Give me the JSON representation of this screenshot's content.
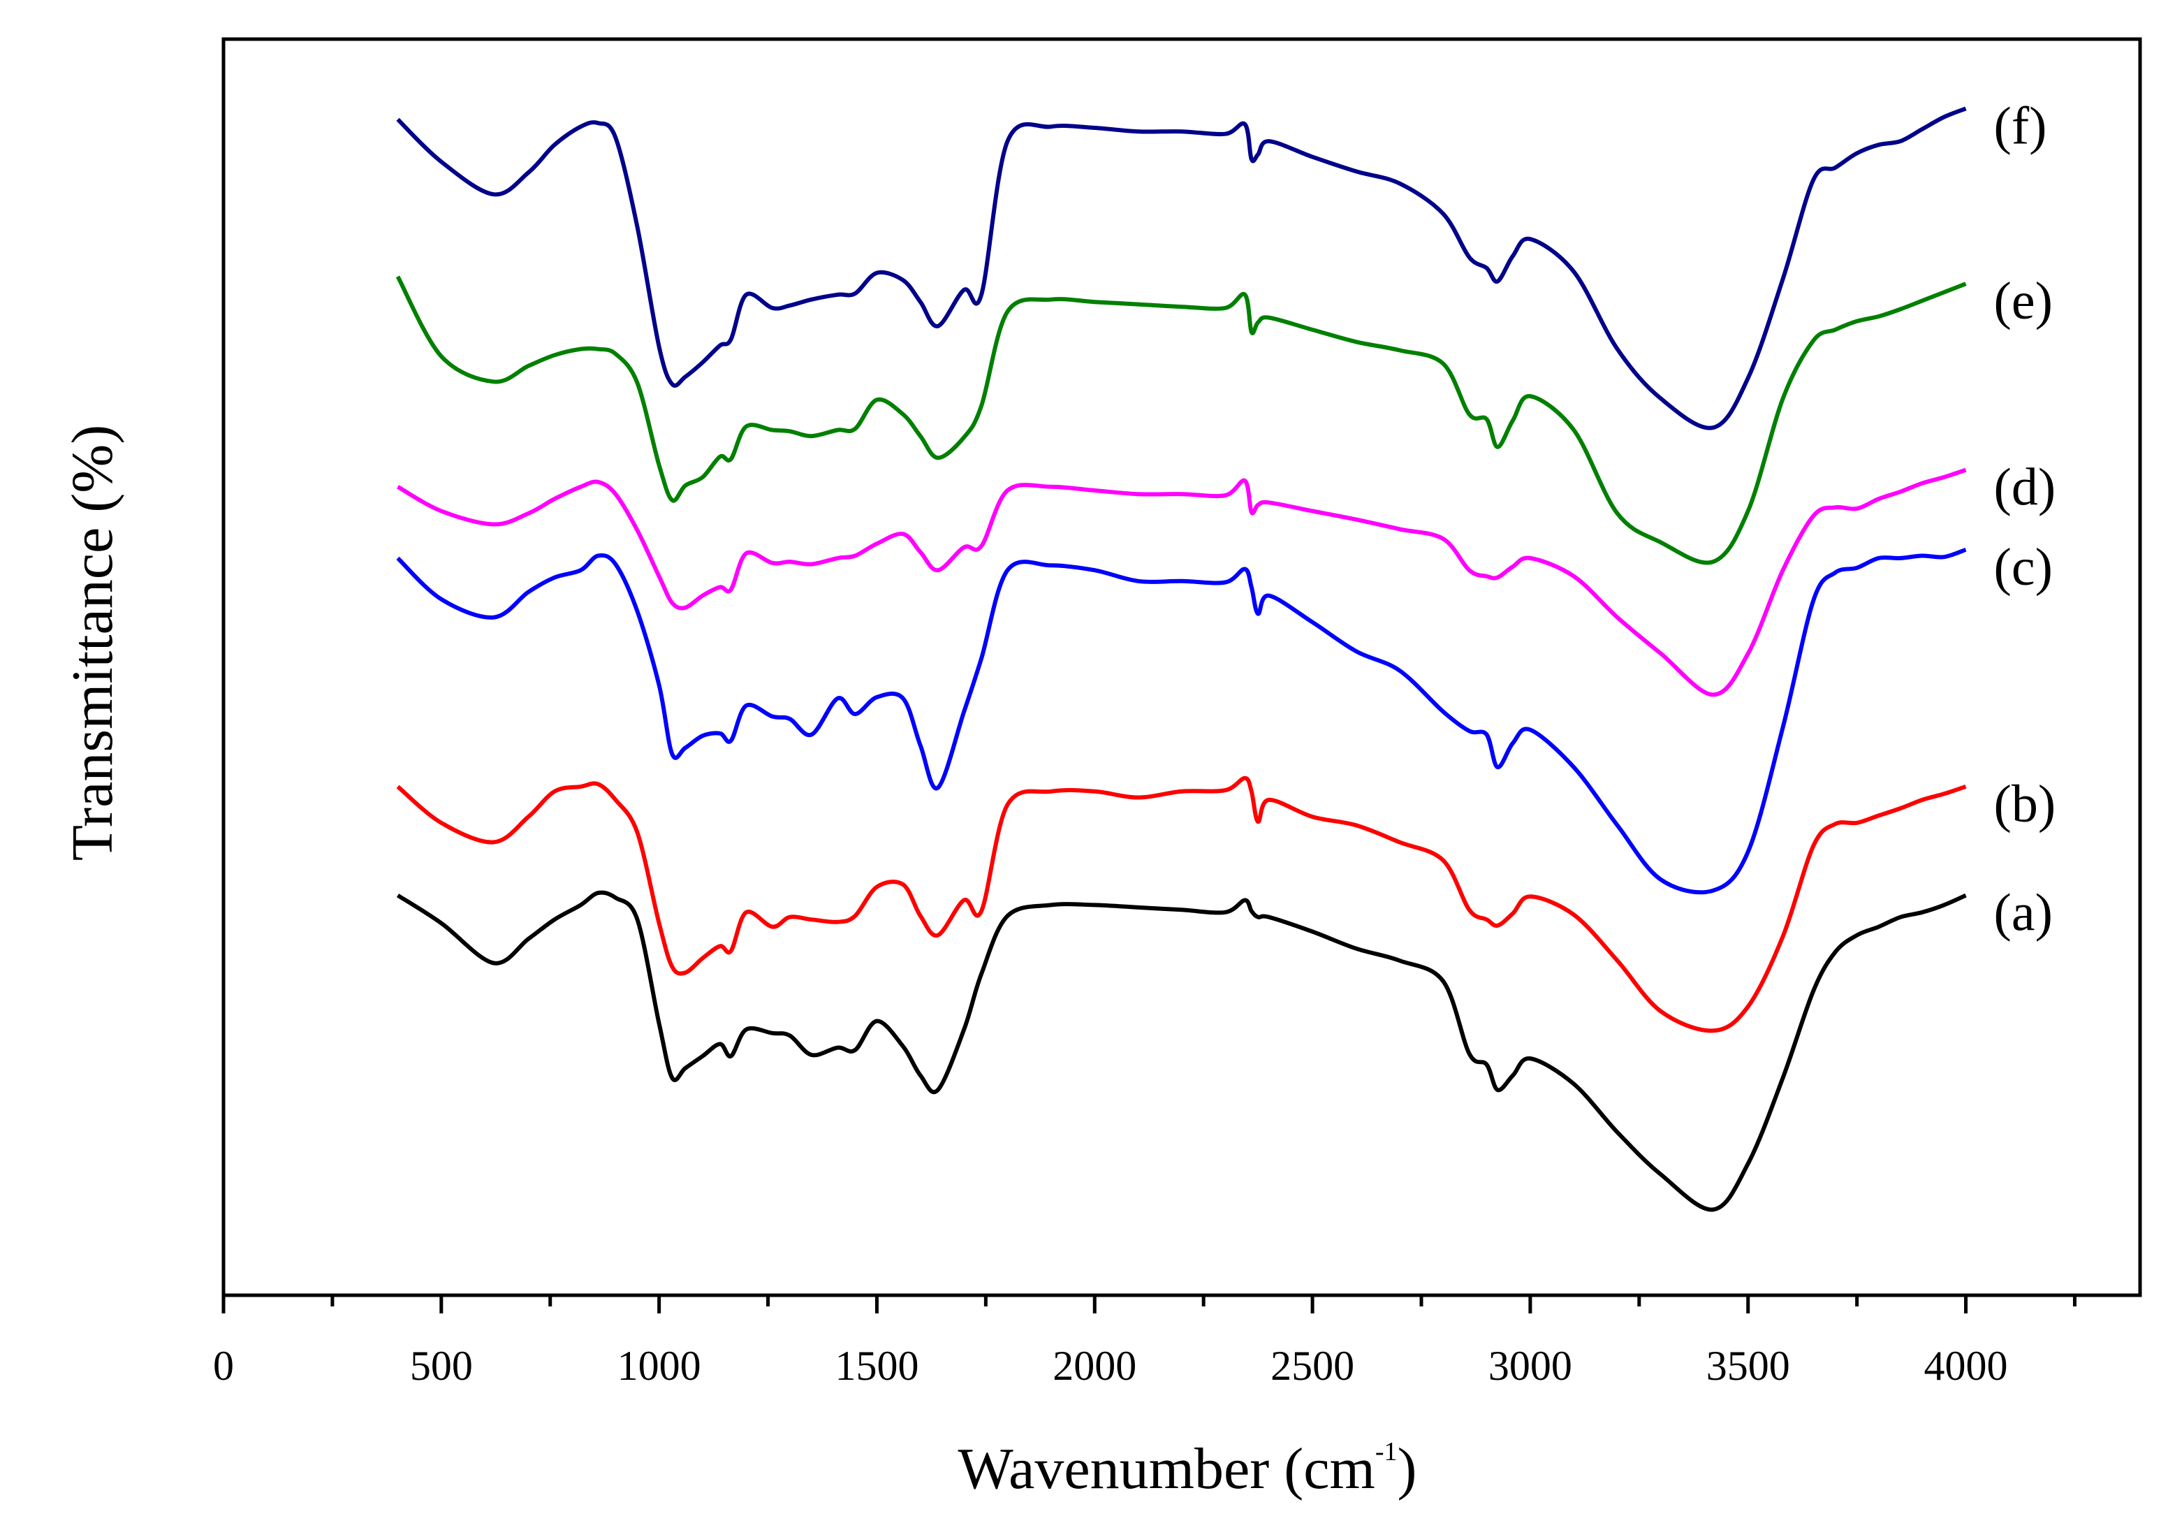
{
  "chart_data": {
    "type": "line",
    "title": "",
    "xlabel": "Wavenumber (cm",
    "xlabel_superscript": "-1",
    "xlabel_suffix": ")",
    "ylabel": "Transmittance (%)",
    "xlim": [
      0,
      4400
    ],
    "ylim": [
      0,
      100
    ],
    "xticks": [
      0,
      500,
      1000,
      1500,
      2000,
      2500,
      3000,
      3500,
      4000
    ],
    "xtick_labels": [
      "0",
      "500",
      "1000",
      "1500",
      "2000",
      "2500",
      "3000",
      "3500",
      "4000"
    ],
    "minor_xticks": [
      250,
      750,
      1250,
      1750,
      2250,
      2750,
      3250,
      3750,
      4250
    ],
    "yticks_shown": false,
    "grid": false,
    "legend": "none; curves labeled at right end",
    "x": [
      400,
      500,
      620,
      700,
      760,
      820,
      860,
      900,
      950,
      1000,
      1030,
      1060,
      1100,
      1140,
      1165,
      1200,
      1260,
      1300,
      1350,
      1410,
      1450,
      1500,
      1560,
      1600,
      1640,
      1700,
      1740,
      1800,
      1900,
      2000,
      2100,
      2200,
      2300,
      2345,
      2360,
      2375,
      2400,
      2500,
      2600,
      2700,
      2800,
      2860,
      2900,
      2925,
      2960,
      3000,
      3100,
      3200,
      3300,
      3420,
      3500,
      3580,
      3650,
      3700,
      3750,
      3800,
      3850,
      3900,
      3950,
      4000
    ],
    "series": [
      {
        "name": "(a)",
        "color": "#000000",
        "values": [
          31.7,
          29.4,
          26.1,
          28.1,
          29.7,
          30.9,
          31.9,
          31.5,
          29.7,
          21.1,
          16.6,
          17.4,
          18.4,
          19.4,
          18.4,
          20.6,
          20.3,
          20.1,
          18.5,
          19.1,
          18.9,
          21.3,
          19.2,
          16.8,
          15.6,
          20.6,
          25.2,
          30.0,
          30.9,
          30.9,
          30.7,
          30.5,
          30.3,
          31.3,
          30.4,
          29.9,
          29.9,
          28.7,
          27.3,
          26.3,
          24.6,
          18.6,
          17.7,
          15.6,
          16.8,
          18.2,
          16.1,
          12.1,
          8.6,
          5.7,
          9.5,
          16.6,
          23.8,
          27.0,
          28.4,
          29.1,
          29.9,
          30.3,
          30.9,
          31.7
        ]
      },
      {
        "name": "(b)",
        "color": "#ff0000",
        "values": [
          40.7,
          37.7,
          36.1,
          38.2,
          40.3,
          40.7,
          40.9,
          39.6,
          36.9,
          29.4,
          25.8,
          25.3,
          26.5,
          27.5,
          27.1,
          30.3,
          29.1,
          29.9,
          29.7,
          29.5,
          30.0,
          32.4,
          32.6,
          30.0,
          28.4,
          31.3,
          30.4,
          39.2,
          40.3,
          40.3,
          39.8,
          40.3,
          40.4,
          41.4,
          40.3,
          37.8,
          39.6,
          38.2,
          37.5,
          36.1,
          34.6,
          30.5,
          29.7,
          29.2,
          30.2,
          31.6,
          30.1,
          26.3,
          22.1,
          20.5,
          22.5,
          28.3,
          35.8,
          37.6,
          37.7,
          38.3,
          38.9,
          39.6,
          40.1,
          40.7
        ]
      },
      {
        "name": "(c)",
        "color": "#0000ff",
        "values": [
          59.6,
          56.2,
          54.7,
          56.8,
          58.0,
          58.6,
          59.8,
          59.1,
          55.2,
          49.1,
          43.4,
          43.9,
          44.9,
          45.1,
          44.5,
          47.4,
          46.5,
          46.3,
          45.0,
          48.0,
          46.7,
          48.1,
          48.0,
          44.1,
          40.6,
          46.9,
          51.3,
          58.6,
          59.0,
          58.6,
          57.7,
          57.7,
          57.6,
          58.7,
          57.2,
          55.0,
          56.5,
          54.3,
          51.9,
          50.3,
          46.9,
          45.3,
          45.0,
          42.3,
          44.3,
          45.4,
          42.3,
          37.5,
          33.0,
          32.1,
          35.3,
          45.6,
          56.1,
          58.4,
          58.8,
          59.6,
          59.6,
          59.8,
          59.7,
          60.3
        ]
      },
      {
        "name": "(d)",
        "color": "#ff00ff",
        "values": [
          65.5,
          63.5,
          62.4,
          63.3,
          64.5,
          65.5,
          65.9,
          64.9,
          61.9,
          58.1,
          55.9,
          55.5,
          56.5,
          57.2,
          57.0,
          60.0,
          59.2,
          59.3,
          59.1,
          59.6,
          59.8,
          60.8,
          61.6,
          60.1,
          58.6,
          60.5,
          60.6,
          65.2,
          65.5,
          65.2,
          64.9,
          64.9,
          64.8,
          66.0,
          63.4,
          64.0,
          64.2,
          63.5,
          62.8,
          62.0,
          61.2,
          58.6,
          58.1,
          58.0,
          58.9,
          59.6,
          58.1,
          54.7,
          51.7,
          48.3,
          51.7,
          58.6,
          63.1,
          63.8,
          63.7,
          64.5,
          65.1,
          65.8,
          66.3,
          66.9
        ]
      },
      {
        "name": "(e)",
        "color": "#008000",
        "values": [
          82.9,
          76.3,
          74.2,
          75.5,
          76.4,
          76.9,
          76.9,
          76.5,
          74.1,
          67.3,
          64.4,
          65.6,
          66.3,
          68.0,
          67.8,
          70.5,
          70.2,
          70.1,
          69.7,
          70.2,
          70.3,
          72.7,
          71.5,
          69.7,
          67.9,
          69.6,
          72.2,
          80.0,
          81.0,
          80.8,
          80.6,
          80.4,
          80.3,
          81.4,
          78.3,
          79.1,
          79.5,
          78.5,
          77.5,
          76.8,
          75.7,
          71.5,
          71.1,
          68.8,
          71.0,
          73.0,
          70.2,
          63.3,
          60.9,
          59.3,
          63.5,
          72.8,
          77.6,
          78.5,
          79.2,
          79.6,
          80.2,
          80.9,
          81.6,
          82.3
        ]
      },
      {
        "name": "(f)",
        "color": "#00008b",
        "values": [
          95.9,
          92.4,
          89.7,
          91.5,
          93.8,
          95.3,
          95.6,
          94.4,
          87.0,
          77.1,
          74.0,
          74.6,
          75.8,
          77.2,
          77.7,
          81.4,
          80.3,
          80.5,
          81.0,
          81.4,
          81.5,
          83.2,
          82.6,
          80.8,
          78.8,
          81.8,
          81.4,
          94.1,
          95.3,
          95.2,
          94.9,
          94.9,
          94.7,
          95.5,
          92.6,
          93.0,
          94.1,
          92.8,
          91.6,
          90.6,
          88.1,
          84.5,
          83.6,
          82.5,
          84.6,
          86.0,
          83.3,
          76.9,
          72.8,
          70.4,
          74.5,
          82.7,
          90.9,
          91.9,
          93.1,
          93.8,
          94.1,
          95.1,
          96.1,
          96.8
        ]
      }
    ]
  }
}
